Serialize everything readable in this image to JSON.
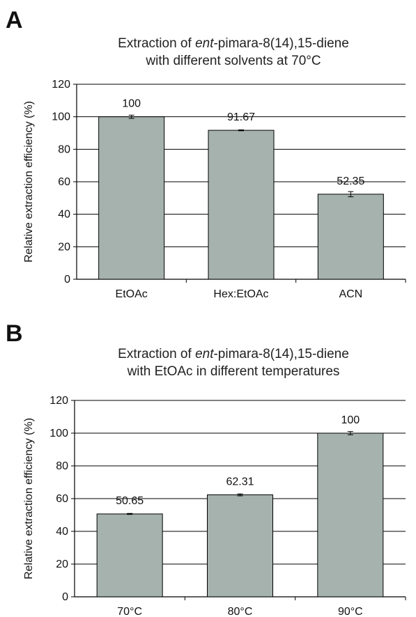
{
  "chart_data": [
    {
      "type": "bar",
      "panel_label": "A",
      "title_parts": [
        "Extraction of ",
        "ent",
        "-pimara-8(14),15-diene"
      ],
      "subtitle": "with different solvents at 70°C",
      "ylabel": "Relative extraction efficiency (%)",
      "xlabel": "",
      "ylim": [
        0,
        120
      ],
      "yticks": [
        "0",
        "20",
        "40",
        "60",
        "80",
        "100",
        "120"
      ],
      "grid": true,
      "categories": [
        "EtOAc",
        "Hex:EtOAc",
        "ACN"
      ],
      "values": [
        100,
        91.67,
        52.35
      ],
      "value_labels": [
        "100",
        "91.67",
        "52.35"
      ],
      "errors": [
        1.0,
        0.3,
        1.6
      ],
      "bar_color": "#a5b2ad"
    },
    {
      "type": "bar",
      "panel_label": "B",
      "title_parts": [
        "Extraction of ",
        "ent",
        "-pimara-8(14),15-diene"
      ],
      "subtitle": "with EtOAc in different temperatures",
      "ylabel": "Relative extraction efficiency (%)",
      "xlabel": "",
      "ylim": [
        0,
        120
      ],
      "yticks": [
        "0",
        "20",
        "40",
        "60",
        "80",
        "100",
        "120"
      ],
      "grid": true,
      "categories": [
        "70°C",
        "80°C",
        "90°C"
      ],
      "values": [
        50.65,
        62.31,
        100
      ],
      "value_labels": [
        "50.65",
        "62.31",
        "100"
      ],
      "errors": [
        0.3,
        0.6,
        1.0
      ],
      "bar_color": "#a5b2ad"
    }
  ]
}
